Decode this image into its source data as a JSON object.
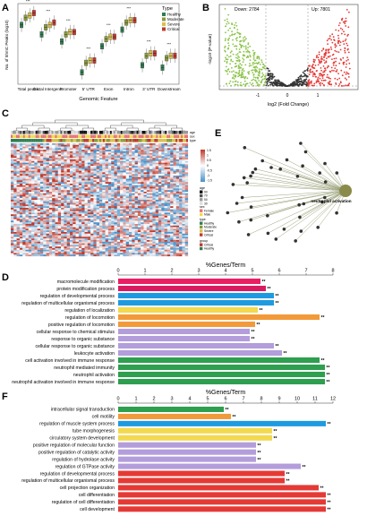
{
  "panel_letters": {
    "a": "A",
    "b": "B",
    "c": "C",
    "d": "D",
    "e": "E",
    "f": "F"
  },
  "chart_data": [
    {
      "panel": "A",
      "type": "box",
      "ylabel": "No. of 5hmC Peaks (log10)",
      "xlabel": "Genomic Feature",
      "legend_title": "Type",
      "legend_position": "top-right",
      "groups": [
        "Healthy",
        "Moderate",
        "Severe",
        "Critical"
      ],
      "colors": [
        "#2e7d4f",
        "#8a9a3a",
        "#d9c04a",
        "#c0392b"
      ],
      "categories": [
        "Total peaks",
        "Distal Intergenic",
        "Promoter",
        "5' UTR",
        "Exon",
        "Intron",
        "3' UTR",
        "Downstream"
      ],
      "medians": [
        [
          4.3,
          4.6,
          4.7,
          4.8
        ],
        [
          3.9,
          4.2,
          4.3,
          4.4
        ],
        [
          3.6,
          3.9,
          4.0,
          4.0
        ],
        [
          2.3,
          2.7,
          2.8,
          2.8
        ],
        [
          3.4,
          3.7,
          3.8,
          3.8
        ],
        [
          4.1,
          4.4,
          4.5,
          4.5
        ],
        [
          2.6,
          3.0,
          3.1,
          3.1
        ],
        [
          2.5,
          2.9,
          3.0,
          3.0
        ]
      ],
      "significance": "***"
    },
    {
      "panel": "B",
      "type": "scatter",
      "xlabel": "log2 (Fold Change)",
      "ylabel": "-log10 (P-value)",
      "xticks": [
        "-1",
        "0",
        "1"
      ],
      "down_label": "Down: 2784",
      "up_label": "Up: 7801",
      "colors": {
        "down": "#8bc34a",
        "ns": "#333333",
        "up": "#e53935"
      }
    },
    {
      "panel": "C",
      "type": "heatmap",
      "annotation_rows": [
        "age",
        "sex",
        "type"
      ],
      "colorbar_ticks": [
        "1.5",
        "1",
        "0.5",
        "0",
        "-0.5",
        "-1",
        "-1.5"
      ],
      "legend_age_title": "age",
      "legend_sex_title": "sex",
      "legend_type_title": "type",
      "legend_group_title": "group",
      "legend_ages": [
        "90",
        "70",
        "50",
        "30"
      ],
      "legend_sexes": [
        "Female",
        "Male"
      ],
      "legend_types": [
        "Healthy",
        "Moderate",
        "Severe",
        "Critical"
      ],
      "legend_groups": [
        "Critical",
        "Healthy"
      ]
    },
    {
      "panel": "E",
      "type": "network",
      "hub_label": "neutrophil activation"
    },
    {
      "panel": "D",
      "type": "bar",
      "title": "%Genes/Term",
      "xlim": [
        0,
        8
      ],
      "xticks": [
        0,
        1,
        2,
        3,
        4,
        5,
        6,
        7,
        8
      ],
      "categories": [
        "macromolecule modification",
        "protein modification process",
        "regulation of developmental process",
        "regulation of multicellular organismal process",
        "regulation of localization",
        "regulation of locomotion",
        "positive regulation of locomotion",
        "cellular response to chemical stimulus",
        "response to organic substance",
        "cellular response to organic substance",
        "leukocyte activation",
        "cell activation involved in immune response",
        "neutrophil mediated immunity",
        "neutrophil activation",
        "neutrophil activation involved in immune response"
      ],
      "values": [
        5.3,
        5.5,
        5.8,
        5.8,
        5.2,
        7.5,
        5.1,
        4.9,
        4.9,
        5.8,
        6.1,
        7.5,
        7.7,
        7.7,
        7.7
      ],
      "colors": [
        "#e91e63",
        "#d81b60",
        "#1e9be0",
        "#1e9be0",
        "#f2d94e",
        "#f29a3a",
        "#f29a3a",
        "#b39ddb",
        "#b39ddb",
        "#b39ddb",
        "#b39ddb",
        "#2e9e4f",
        "#2e9e4f",
        "#2e9e4f",
        "#2e9e4f"
      ],
      "sig": "**"
    },
    {
      "panel": "F",
      "type": "bar",
      "title": "%Genes/Term",
      "xlim": [
        0,
        12
      ],
      "xticks": [
        0,
        1,
        2,
        3,
        4,
        5,
        6,
        7,
        8,
        9,
        10,
        11,
        12
      ],
      "categories": [
        "intracellular signal transduction",
        "cell motility",
        "regulation of muscle system process",
        "tube morphogenesis",
        "circulatory system development",
        "positive regulation of molecular function",
        "positive regulation of catalytic activity",
        "regulation of hydrolase activity",
        "regulation of GTPase activity",
        "regulation of developmental process",
        "regulation of multicellular organismal process",
        "cell projection organization",
        "cell differentiation",
        "regulation of cell differentiation",
        "cell development"
      ],
      "values": [
        5.9,
        6.3,
        11.6,
        8.6,
        8.6,
        7.7,
        7.7,
        7.7,
        10.2,
        9.3,
        9.3,
        11.2,
        11.6,
        11.6,
        11.6
      ],
      "colors": [
        "#2e9e4f",
        "#f29a3a",
        "#1e9be0",
        "#f2d94e",
        "#f2d94e",
        "#b39ddb",
        "#b39ddb",
        "#b39ddb",
        "#b39ddb",
        "#e53935",
        "#e53935",
        "#e53935",
        "#e53935",
        "#e53935",
        "#e53935"
      ],
      "sig": "**"
    }
  ]
}
